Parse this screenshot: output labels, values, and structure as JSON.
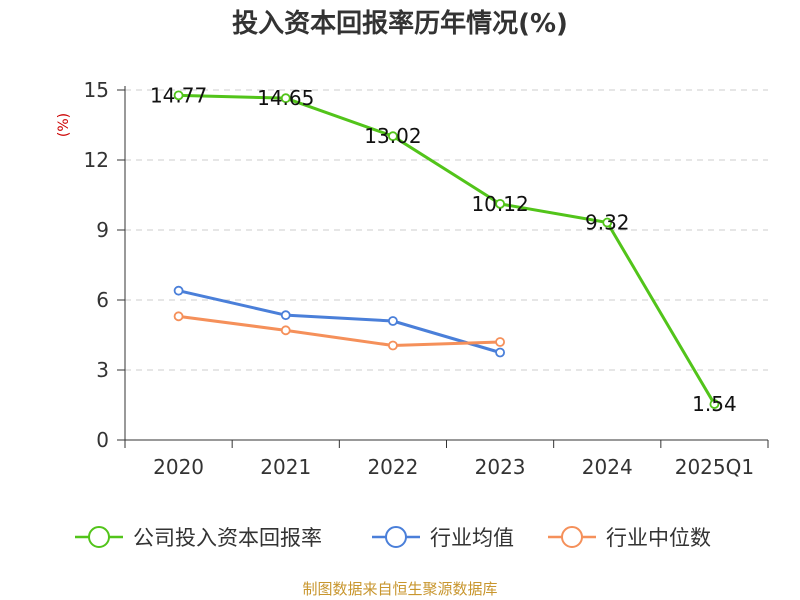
{
  "chart_data": {
    "type": "line",
    "title": "投入资本回报率历年情况(%)",
    "ylabel": "(%)",
    "categories": [
      "2020",
      "2021",
      "2022",
      "2023",
      "2024",
      "2025Q1"
    ],
    "ylim": [
      0,
      15
    ],
    "yticks": [
      0,
      3,
      6,
      9,
      12,
      15
    ],
    "grid": true,
    "legend_position": "bottom",
    "series": [
      {
        "name": "公司投入资本回报率",
        "color": "#52c41a",
        "values": [
          14.77,
          14.65,
          13.02,
          10.12,
          9.32,
          1.54
        ],
        "labels": [
          "14.77",
          "14.65",
          "13.02",
          "10.12",
          "9.32",
          "1.54"
        ]
      },
      {
        "name": "行业均值",
        "color": "#4a7fd9",
        "values": [
          6.4,
          5.35,
          5.1,
          3.75,
          null,
          null
        ]
      },
      {
        "name": "行业中位数",
        "color": "#f5905a",
        "values": [
          5.3,
          4.7,
          4.05,
          4.2,
          null,
          null
        ]
      }
    ]
  },
  "source": "制图数据来自恒生聚源数据库"
}
